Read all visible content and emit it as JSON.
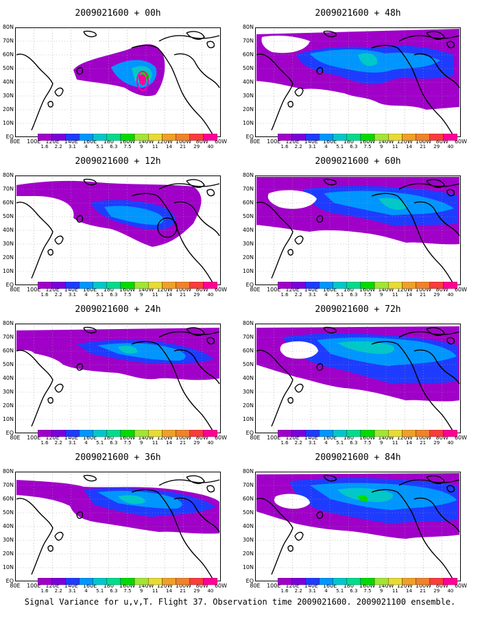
{
  "panels": [
    {
      "title": "2009021600 + 00h"
    },
    {
      "title": "2009021600 + 48h"
    },
    {
      "title": "2009021600 + 12h"
    },
    {
      "title": "2009021600 + 60h"
    },
    {
      "title": "2009021600 + 24h"
    },
    {
      "title": "2009021600 + 72h"
    },
    {
      "title": "2009021600 + 36h"
    },
    {
      "title": "2009021600 + 84h"
    }
  ],
  "lat_labels": [
    "80N",
    "70N",
    "60N",
    "50N",
    "40N",
    "30N",
    "20N",
    "10N",
    "EQ"
  ],
  "lon_labels": [
    "80E",
    "100E",
    "120E",
    "140E",
    "160E",
    "180",
    "160W",
    "140W",
    "120W",
    "100W",
    "80W",
    "60W"
  ],
  "colorbar": {
    "labels": [
      "1.6",
      "2.2",
      "3.1",
      "4",
      "5.1",
      "6.3",
      "7.5",
      "9",
      "11",
      "14",
      "21",
      "29",
      "40"
    ],
    "colors": [
      "#a000c8",
      "#7b00dc",
      "#1e3cff",
      "#0096ff",
      "#00c8c8",
      "#00dc8c",
      "#00dc00",
      "#a0e632",
      "#e6dc32",
      "#f0a028",
      "#f08228",
      "#fa3c3c",
      "#ff0096"
    ]
  },
  "footer": "Signal Variance for u,v,T. Flight 37. Observation time 2009021600. 2009021100 ensemble."
}
